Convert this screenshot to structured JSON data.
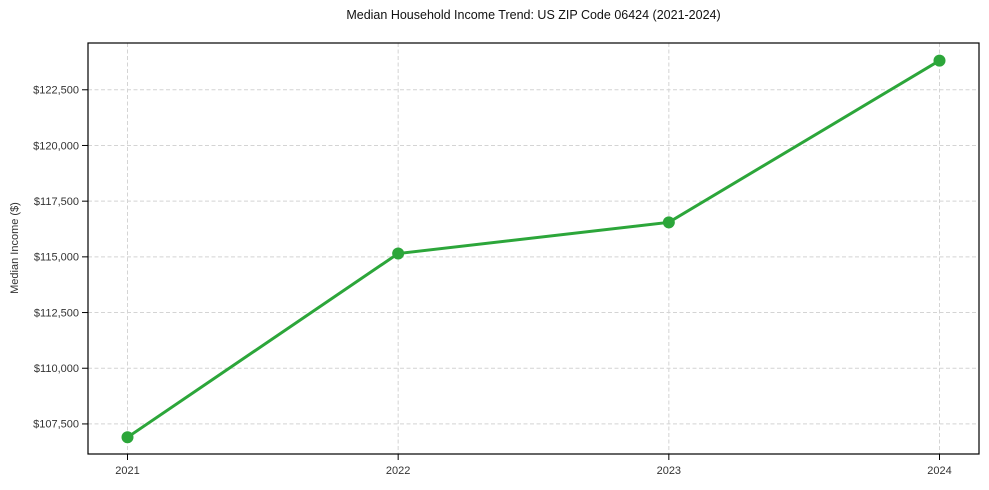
{
  "chart_data": {
    "type": "line",
    "title": "Median Household Income Trend: US ZIP Code 06424 (2021-2024)",
    "xlabel": "",
    "ylabel": "Median Income ($)",
    "categories": [
      "2021",
      "2022",
      "2023",
      "2024"
    ],
    "series": [
      {
        "name": "Median Household Income",
        "values": [
          106900,
          115150,
          116550,
          123810
        ]
      }
    ],
    "ylim": [
      106150,
      124600
    ],
    "yticks": {
      "values": [
        107500,
        110000,
        112500,
        115000,
        117500,
        120000,
        122500
      ],
      "labels": [
        "$107,500",
        "$110,000",
        "$112,500",
        "$115,000",
        "$117,500",
        "$120,000",
        "$122,500"
      ]
    },
    "grid": true,
    "grid_style": "dashed",
    "legend": false,
    "colors": {
      "line": "#2ca63a",
      "marker": "#2ca63a",
      "grid": "#d4d4d4",
      "axis": "#000000",
      "tick_text": "#333333",
      "title_text": "#111111",
      "background": "#ffffff"
    }
  }
}
